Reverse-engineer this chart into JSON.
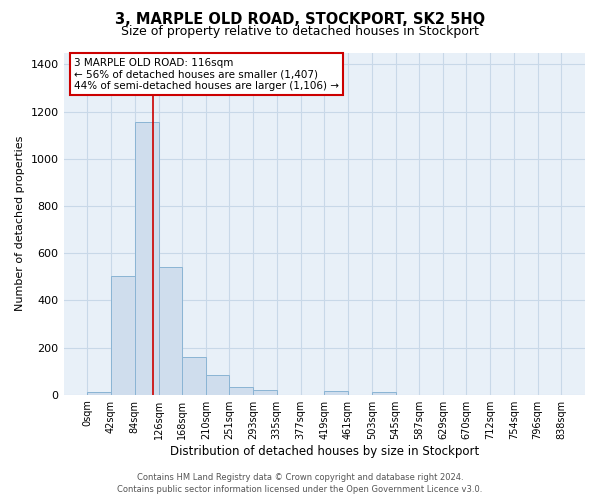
{
  "title": "3, MARPLE OLD ROAD, STOCKPORT, SK2 5HQ",
  "subtitle": "Size of property relative to detached houses in Stockport",
  "xlabel": "Distribution of detached houses by size in Stockport",
  "ylabel": "Number of detached properties",
  "bar_edges": [
    0,
    42,
    84,
    126,
    168,
    210,
    251,
    293,
    335,
    377,
    419,
    461,
    503,
    545,
    587,
    629,
    670,
    712,
    754,
    796,
    838
  ],
  "bar_heights": [
    10,
    505,
    1155,
    540,
    160,
    83,
    33,
    18,
    0,
    0,
    17,
    0,
    10,
    0,
    0,
    0,
    0,
    0,
    0,
    0
  ],
  "bar_color": "#cfdded",
  "bar_edge_color": "#8ab4d4",
  "bar_linewidth": 0.7,
  "vline_x": 116,
  "vline_color": "#cc0000",
  "vline_linewidth": 1.2,
  "annotation_line1": "3 MARPLE OLD ROAD: 116sqm",
  "annotation_line2": "← 56% of detached houses are smaller (1,407)",
  "annotation_line3": "44% of semi-detached houses are larger (1,106) →",
  "annotation_fontsize": 7.5,
  "annotation_box_color": "white",
  "annotation_box_edgecolor": "#cc0000",
  "ylim": [
    0,
    1450
  ],
  "yticks": [
    0,
    200,
    400,
    600,
    800,
    1000,
    1200,
    1400
  ],
  "grid_color": "#c8d8e8",
  "figure_bg": "#ffffff",
  "axes_bg": "#e8f0f8",
  "title_fontsize": 10.5,
  "subtitle_fontsize": 9,
  "xlabel_fontsize": 8.5,
  "ylabel_fontsize": 8,
  "tick_fontsize": 7,
  "ytick_fontsize": 8,
  "footer_line1": "Contains HM Land Registry data © Crown copyright and database right 2024.",
  "footer_line2": "Contains public sector information licensed under the Open Government Licence v3.0.",
  "footer_fontsize": 6
}
